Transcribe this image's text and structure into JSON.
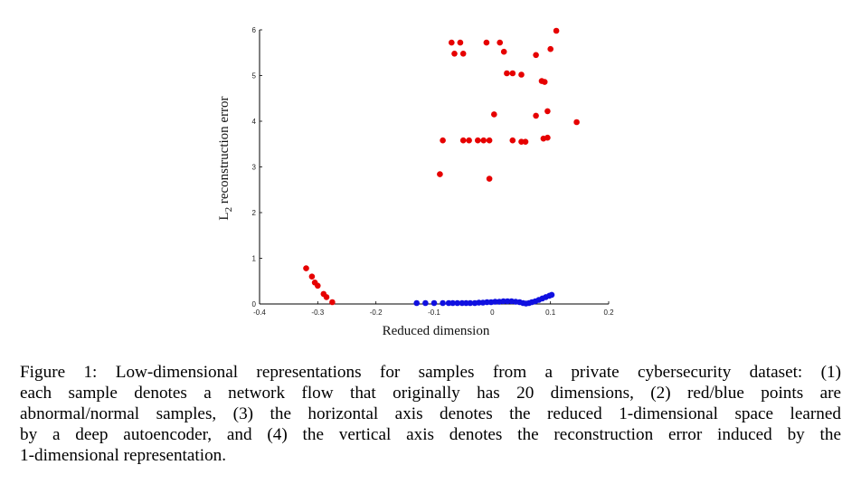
{
  "chart_data": {
    "type": "scatter",
    "title": "",
    "xlabel": "Reduced dimension",
    "ylabel_main": "L",
    "ylabel_sub": "2",
    "ylabel_rest": " reconstruction error",
    "xlim": [
      -0.4,
      0.2
    ],
    "ylim": [
      0,
      6
    ],
    "xticks": [
      "-0.4",
      "-0.3",
      "-0.2",
      "-0.1",
      "0",
      "0.1",
      "0.2"
    ],
    "yticks": [
      "0",
      "1",
      "2",
      "3",
      "4",
      "5",
      "6"
    ],
    "grid": false,
    "series": [
      {
        "color": "#e60000",
        "points": [
          [
            -0.32,
            0.78
          ],
          [
            -0.31,
            0.6
          ],
          [
            -0.305,
            0.47
          ],
          [
            -0.3,
            0.4
          ],
          [
            -0.29,
            0.22
          ],
          [
            -0.285,
            0.15
          ],
          [
            -0.275,
            0.04
          ],
          [
            -0.09,
            2.84
          ],
          [
            -0.085,
            3.58
          ],
          [
            -0.07,
            5.72
          ],
          [
            -0.065,
            5.48
          ],
          [
            -0.055,
            5.72
          ],
          [
            -0.05,
            5.48
          ],
          [
            -0.05,
            3.58
          ],
          [
            -0.04,
            3.58
          ],
          [
            -0.025,
            3.58
          ],
          [
            -0.015,
            3.58
          ],
          [
            -0.005,
            3.58
          ],
          [
            -0.01,
            5.72
          ],
          [
            -0.005,
            2.74
          ],
          [
            0.003,
            4.15
          ],
          [
            0.013,
            5.72
          ],
          [
            0.02,
            5.52
          ],
          [
            0.025,
            5.05
          ],
          [
            0.035,
            5.05
          ],
          [
            0.035,
            3.58
          ],
          [
            0.05,
            5.02
          ],
          [
            0.05,
            3.55
          ],
          [
            0.057,
            3.55
          ],
          [
            0.075,
            5.45
          ],
          [
            0.075,
            4.12
          ],
          [
            0.085,
            4.88
          ],
          [
            0.09,
            4.86
          ],
          [
            0.088,
            3.62
          ],
          [
            0.095,
            3.64
          ],
          [
            0.095,
            4.22
          ],
          [
            0.1,
            5.58
          ],
          [
            0.11,
            5.98
          ],
          [
            0.145,
            3.98
          ]
        ]
      },
      {
        "color": "#1010e0",
        "points": [
          [
            -0.13,
            0.02
          ],
          [
            -0.115,
            0.02
          ],
          [
            -0.1,
            0.02
          ],
          [
            -0.085,
            0.02
          ],
          [
            -0.075,
            0.02
          ],
          [
            -0.068,
            0.02
          ],
          [
            -0.06,
            0.02
          ],
          [
            -0.052,
            0.02
          ],
          [
            -0.045,
            0.02
          ],
          [
            -0.038,
            0.02
          ],
          [
            -0.03,
            0.02
          ],
          [
            -0.023,
            0.03
          ],
          [
            -0.016,
            0.03
          ],
          [
            -0.009,
            0.04
          ],
          [
            -0.002,
            0.04
          ],
          [
            0.005,
            0.05
          ],
          [
            0.012,
            0.05
          ],
          [
            0.019,
            0.06
          ],
          [
            0.026,
            0.06
          ],
          [
            0.033,
            0.06
          ],
          [
            0.04,
            0.05
          ],
          [
            0.047,
            0.04
          ],
          [
            0.053,
            0.02
          ],
          [
            0.058,
            0.01
          ],
          [
            0.063,
            0.02
          ],
          [
            0.068,
            0.04
          ],
          [
            0.074,
            0.06
          ],
          [
            0.08,
            0.09
          ],
          [
            0.086,
            0.12
          ],
          [
            0.092,
            0.15
          ],
          [
            0.098,
            0.18
          ],
          [
            0.102,
            0.2
          ]
        ]
      }
    ]
  },
  "caption": {
    "lines": [
      "Figure 1: Low-dimensional representations for samples from a private cybersecurity dataset: (1)",
      "each sample denotes a network flow that originally has 20 dimensions, (2) red/blue points are",
      "abnormal/normal samples, (3) the horizontal axis denotes the reduced 1-dimensional space learned",
      "by a deep autoencoder, and (4) the vertical axis denotes the reconstruction error induced by the",
      "1-dimensional representation."
    ]
  }
}
